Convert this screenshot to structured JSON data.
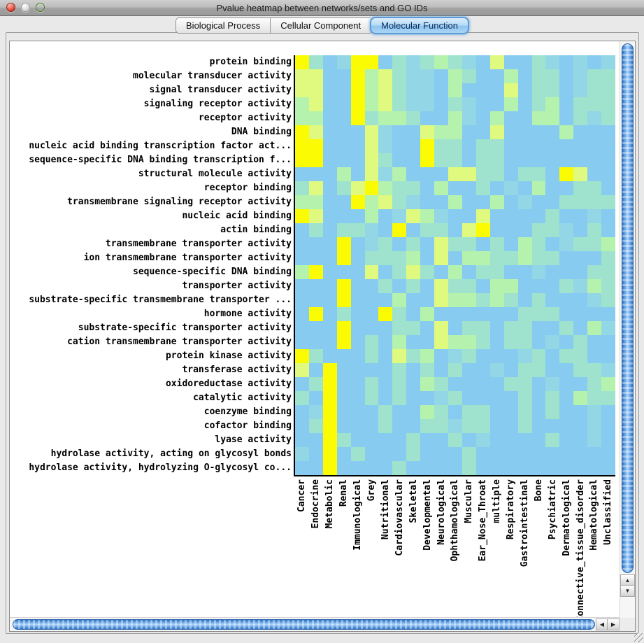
{
  "window": {
    "title": "Pvalue heatmap between networks/sets and GO IDs"
  },
  "tabs": [
    {
      "label": "Biological Process",
      "selected": false
    },
    {
      "label": "Cellular Component",
      "selected": false
    },
    {
      "label": "Molecular Function",
      "selected": true
    }
  ],
  "icons": {
    "up_arrow": "▲",
    "down_arrow": "▼",
    "left_arrow": "◀",
    "right_arrow": "▶"
  },
  "chart_data": {
    "type": "heatmap",
    "title": "Pvalue heatmap between networks/sets and GO IDs",
    "rows": [
      "protein binding",
      "molecular transducer activity",
      "signal transducer activity",
      "signaling receptor activity",
      "receptor activity",
      "DNA binding",
      "nucleic acid binding transcription factor act...",
      "sequence-specific DNA binding transcription f...",
      "structural molecule activity",
      "receptor binding",
      "transmembrane signaling receptor activity",
      "nucleic acid binding",
      "actin binding",
      "transmembrane transporter activity",
      "ion transmembrane transporter activity",
      "sequence-specific DNA binding",
      "transporter activity",
      "substrate-specific transmembrane transporter ...",
      "hormone activity",
      "substrate-specific transporter activity",
      "cation transmembrane transporter activity",
      "protein kinase activity",
      "transferase activity",
      "oxidoreductase activity",
      "catalytic activity",
      "coenzyme binding",
      "cofactor binding",
      "lyase activity",
      "hydrolase activity, acting on glycosyl bonds",
      "hydrolase activity, hydrolyzing O-glycosyl co..."
    ],
    "columns": [
      "Cancer",
      "Endocrine",
      "Metabolic",
      "Renal",
      "Immunological",
      "Grey",
      "Nutritional",
      "Cardiovascular",
      "Skeletal",
      "Developmental",
      "Neurological",
      "Ophthamological",
      "Muscular",
      "Ear_Nose_Throat",
      "multiple",
      "Respiratory",
      "Gastrointestinal",
      "Bone",
      "Psychiatric",
      "Dermatological",
      "Connective_tissue_disorder",
      "Hematological",
      "Unclassified"
    ],
    "palette": {
      "Y": "#FBFB04",
      "L": "#DFFA7E",
      "G": "#B5F2AE",
      "T": "#9FE3CE",
      "S": "#93D6E5",
      "B": "#87CBF0"
    },
    "color_scale": [
      "#FBFB04",
      "#DFFA7E",
      "#B5F2AE",
      "#9FE3CE",
      "#93D6E5",
      "#87CBF0"
    ],
    "grid": [
      "YTBSYYBTSTGTSBLBBTSBSBS",
      "LLBBYGLTSSBGTBBGBTTBSTT",
      "LLBBYGLTSSBGBBBLBTTBSTT",
      "GLBBYGLTSSBTSBBGBTGBTTT",
      "GGBBYTGGTBBGSBGBBGGBTST",
      "YLBBBLSBBLGGBBLBBBBGBBB",
      "YYBBBLSBBYTTBTTBBBBBBBB",
      "YYBBBLTBBYTTBTTBBBBBBBB",
      "BBBGBLSGBBBLLTTBTTBYLBB",
      "TLBTLYGTTBGBBTBSBGBBTTB",
      "GGBBYGLTSBBGBBGBSBBTTTT",
      "YLBBBGBSLGSBBLBBBBTBBSB",
      "BTBTTSBYBTTBLYBBBTTSBTB",
      "BBBYBSTBTBLTTBTBGTBSTTG",
      "BBBYBTTTGBLBGGTTGTTBBBT",
      "GYBBBLBTLTBGBTTBBSBBBTT",
      "BBBYBBTBTBLTTBGGBBBTSGT",
      "BBBYBBBGBBLGGTGTBTBBBST",
      "BYBTBBYTBGBBBBBBTTTBBBB",
      "BBBYBBBTTBLBTTBTTBBTBGS",
      "BBBYBTBGBBLGGTBTTBSBTBB",
      "YTBBBTBLTGBSTBBBSTBTTBB",
      "LBYBBBBTBTBTBBSBTTBBTTS",
      "BTYBBTBTBGTBBBBTTBSBBTG",
      "TBYBBTBTBBSTBBBBTBTBGTT",
      "BSYBBBTBBGTBTTBBTBTBBSB",
      "BTYBBBTBBTTSTTBBTBBBBSB",
      "BBYTBBBBTBBTBSBBBBTBBSB",
      "SBYBTBBBTBBBTBBBBBBBBBB",
      "BBYBBBBTBBBBTBBBBBBBBBB"
    ]
  }
}
